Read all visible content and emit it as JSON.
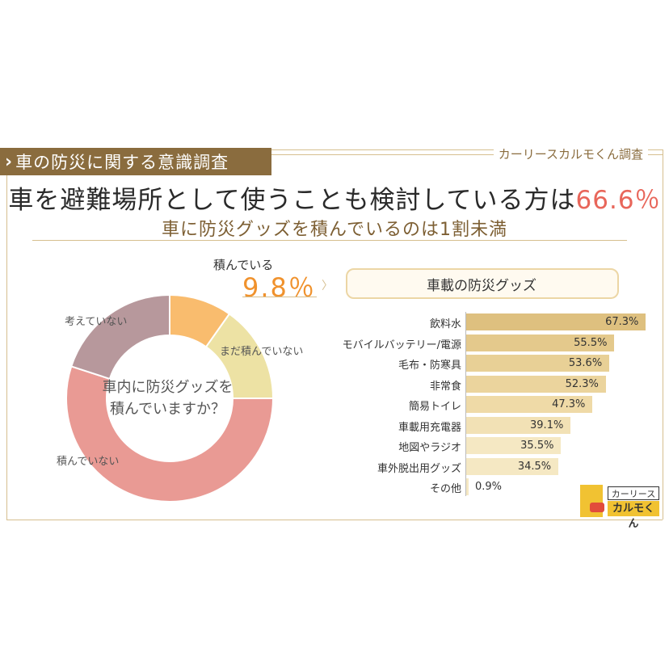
{
  "header": {
    "tag_label": "車の防災に関する意識調査",
    "source": "カーリースカルモくん調査"
  },
  "headline": {
    "main_prefix": "車を避難場所として使うことも検討している方は",
    "main_highlight": "66.6％",
    "sub": "車に防災グッズを積んでいるのは1割未満"
  },
  "donut": {
    "center_text_line1": "車内に防災グッズを",
    "center_text_line2": "積んでいますか？",
    "callout_label": "積んでいる",
    "callout_value": "9.8％"
  },
  "bars_panel": {
    "title": "車載の防災グッズ"
  },
  "logo": {
    "line1": "カーリース",
    "line2": "カルモくん"
  },
  "colors": {
    "brown": "#8a6c3e",
    "gold_line": "#d6bf8f",
    "highlight_red": "#e8665a",
    "orange": "#f0922d"
  },
  "chart_data": [
    {
      "type": "pie",
      "title": "車内に防災グッズを積んでいますか？",
      "donut": true,
      "slices": [
        {
          "label": "積んでいる",
          "value": 9.8,
          "color": "#f9bc6e"
        },
        {
          "label": "まだ積んでいない",
          "value": 15.2,
          "color": "#ede2a4"
        },
        {
          "label": "積んでいない",
          "value": 55.0,
          "color": "#e99a94"
        },
        {
          "label": "考えていない",
          "value": 20.0,
          "color": "#b7989c"
        }
      ]
    },
    {
      "type": "bar",
      "orientation": "horizontal",
      "title": "車載の防災グッズ",
      "categories": [
        "飲料水",
        "モバイルバッテリー/電源",
        "毛布・防寒具",
        "非常食",
        "簡易トイレ",
        "車載用充電器",
        "地図やラジオ",
        "車外脱出用グッズ",
        "その他"
      ],
      "values": [
        67.3,
        55.5,
        53.6,
        52.3,
        47.3,
        39.1,
        35.5,
        34.5,
        0.9
      ],
      "value_labels": [
        "67.3%",
        "55.5%",
        "53.6%",
        "52.3%",
        "47.3%",
        "39.1%",
        "35.5%",
        "34.5%",
        "0.9%"
      ],
      "colors": [
        "#dec07f",
        "#e4c98c",
        "#e8d096",
        "#ebd49d",
        "#efdaa7",
        "#f2e1b5",
        "#f5e8c3",
        "#f5e8c3",
        "#f5e8c3"
      ],
      "xlim": [
        0,
        100
      ],
      "unit": "%"
    }
  ]
}
